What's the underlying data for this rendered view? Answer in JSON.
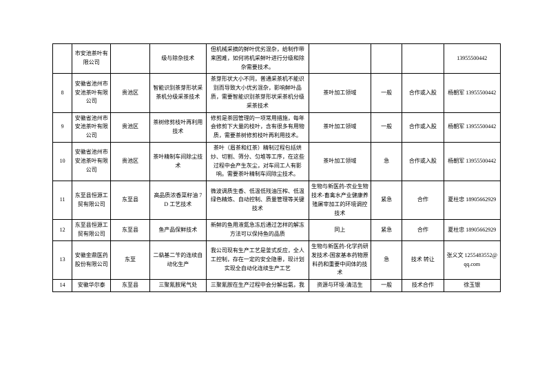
{
  "table": {
    "rows": [
      {
        "no": "",
        "company": "市安池茶叶有限公司",
        "region": "",
        "tech": "级与除杂技术",
        "desc": "但机械采摘的鲜叶优劣混杂，给制作带来困难，如何将机采鲜叶进行分级和除杂需要技术。",
        "field": "",
        "urgency": "",
        "mode": "",
        "contact": "13955500442"
      },
      {
        "no": "8",
        "company": "安徽省池州市安池茶叶有限公司",
        "region": "贵池区",
        "tech": "智能识别茶芽形状采茶机分级采茶技术",
        "desc": "茶芽形状大小不同，普通采茶机不能识别而导致大小优劣混杂，影响鲜叶品质，需要智能识别茶芽形状采茶机分级采茶技术",
        "field": "茶叶加工领域",
        "urgency": "一般",
        "mode": "合作或入股",
        "contact": "杨朝军 13955500442"
      },
      {
        "no": "9",
        "company": "安徽省池州市安池茶叶有限公司",
        "region": "贵池区",
        "tech": "茶树修剪枝叶再利用技术",
        "desc": "修剪是茶园管理的一项常用措施，每年会修剪下大量的枝叶，含有很多有用物质，需要茶树修剪枝叶再利用技术。",
        "field": "茶叶加工领域",
        "urgency": "一般",
        "mode": "合作或入股",
        "contact": "杨朝军 13955500442"
      },
      {
        "no": "10",
        "company": "安徽省池州市安池茶叶有限公司",
        "region": "贵池区",
        "tech": "茶叶精制车间除尘技术",
        "desc": "茶叶（眉茶和红茶）精制过程包括烘炒、切割、筛分、匀堆等工序，在这些过程中会产生灰尘，对车间工人有影响。需要茶叶精制车间除尘技术。",
        "field": "茶叶加工领域",
        "urgency": "急",
        "mode": "合作或入股",
        "contact": "杨朝军 13955500442"
      },
      {
        "no": "11",
        "company": "东至县恒源工贸有限公司",
        "region": "东至县",
        "tech": "高品质浓香菜籽油 7D 工艺技术",
        "desc": "微波调质生香、低温低残油压榨、低温绿色精炼、自动控制、质量管理等关键技术",
        "field": "生物与新医药-农业生物技术-畜禽水产业健康养殖屠宰加工的环境调控技术",
        "urgency": "紧急",
        "mode": "合作",
        "contact": "夏柱忠 18905662929"
      },
      {
        "no": "12",
        "company": "东至县恒源工贸有限公司",
        "region": "东至县",
        "tech": "鱼产品保鲜技术",
        "desc": "新鲜的鱼用液氮急冻后通过怎样的解冻方法可以保持鱼的品质",
        "field": "同上",
        "urgency": "紧急",
        "mode": "合作",
        "contact": "夏柱忠 18905662929"
      },
      {
        "no": "13",
        "company": "安徽金鼎医药股份有限公司",
        "region": "东至",
        "tech": "二萜基二苄的连续自动化生产",
        "desc": "我公司现有生产工艺是釜式反应，全人工控制，存在一定的安全隐患，现计划实现全自动化连续生产工艺",
        "field": "生物与新医药-化学药研发技术-国家基本药物原料药和重要中间体的技术",
        "urgency": "急",
        "mode": "技术 转让",
        "contact": "张义文 1255483552@qq.com"
      },
      {
        "no": "14",
        "company": "安徽华尔泰",
        "region": "东至县",
        "tech": "三聚氰胺尾气处",
        "desc": "三聚氰胺在生产过程中会分解出氨，我",
        "field": "资源与环境-清洁生",
        "urgency": "一般",
        "mode": "技术合作",
        "contact": "徐玉银"
      }
    ]
  }
}
